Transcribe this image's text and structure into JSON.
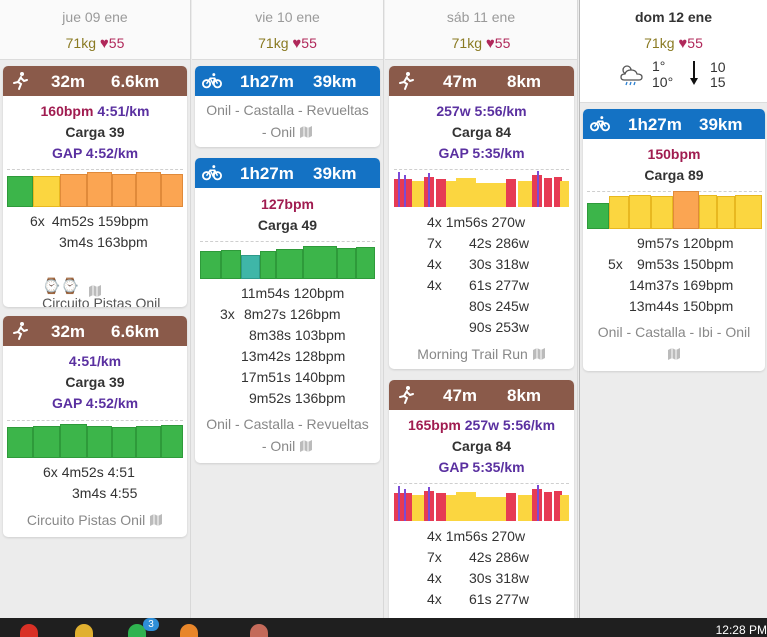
{
  "days": [
    {
      "date": "jue 09 ene",
      "weight": "71kg",
      "hr": "55"
    },
    {
      "date": "vie 10 ene",
      "weight": "71kg",
      "hr": "55"
    },
    {
      "date": "sáb 11 ene",
      "weight": "71kg",
      "hr": "55"
    },
    {
      "date": "dom 12 ene",
      "weight": "71kg",
      "hr": "55"
    }
  ],
  "weather": {
    "low": "1°",
    "high": "10°",
    "wind_a": "10",
    "wind_b": "15",
    "icon": "cloudy-rain-icon"
  },
  "colors": {
    "run": "#8a5a4a",
    "ride": "#1472c4",
    "green": "#3cb54a",
    "yellow": "#fbd640",
    "orange": "#fba552",
    "red": "#e63b54",
    "purple": "#7a4bd6"
  },
  "cards": {
    "thu1": {
      "dur": "32m",
      "dist": "6.6km",
      "bpm": "160bpm",
      "pace": "4:51/km",
      "carga": "Carga 39",
      "gap": "GAP 4:52/km",
      "rows": [
        [
          "6x",
          "4m52s",
          "159bpm"
        ],
        [
          "",
          "3m4s",
          "163bpm"
        ]
      ],
      "loc": "Circuito Pistas Onil"
    },
    "thu2": {
      "dur": "32m",
      "dist": "6.6km",
      "pace": "4:51/km",
      "carga": "Carga 39",
      "gap": "GAP 4:52/km",
      "rows": [
        [
          "6x",
          "4m52s",
          "4:51"
        ],
        [
          "",
          "3m4s",
          "4:55"
        ]
      ],
      "loc": "Circuito Pistas Onil"
    },
    "fri1": {
      "dur": "1h27m",
      "dist": "39km",
      "loc1": "Onil - Castalla - Revueltas",
      "loc2": "- Onil"
    },
    "fri2": {
      "dur": "1h27m",
      "dist": "39km",
      "bpm": "127bpm",
      "carga": "Carga 49",
      "rows": [
        [
          "",
          "11m54s",
          "120bpm"
        ],
        [
          "3x",
          "8m27s",
          "126bpm"
        ],
        [
          "",
          "8m38s",
          "103bpm"
        ],
        [
          "",
          "13m42s",
          "128bpm"
        ],
        [
          "",
          "17m51s",
          "140bpm"
        ],
        [
          "",
          "9m52s",
          "136bpm"
        ]
      ],
      "loc1": "Onil - Castalla - Revueltas",
      "loc2": "- Onil"
    },
    "sat1": {
      "dur": "47m",
      "dist": "8km",
      "watts": "257w",
      "pace": "5:56/km",
      "carga": "Carga 84",
      "gap": "GAP 5:35/km",
      "rows": [
        [
          "4x",
          "1m56s",
          "270w"
        ],
        [
          "7x",
          "42s",
          "286w"
        ],
        [
          "4x",
          "30s",
          "318w"
        ],
        [
          "4x",
          "61s",
          "277w"
        ],
        [
          "",
          "80s",
          "245w"
        ],
        [
          "",
          "90s",
          "253w"
        ]
      ],
      "loc": "Morning Trail Run"
    },
    "sat2": {
      "dur": "47m",
      "dist": "8km",
      "bpm": "165bpm",
      "watts": "257w",
      "pace": "5:56/km",
      "carga": "Carga 84",
      "gap": "GAP 5:35/km",
      "rows": [
        [
          "4x",
          "1m56s",
          "270w"
        ],
        [
          "7x",
          "42s",
          "286w"
        ],
        [
          "4x",
          "30s",
          "318w"
        ],
        [
          "4x",
          "61s",
          "277w"
        ]
      ]
    },
    "sun1": {
      "dur": "1h27m",
      "dist": "39km",
      "bpm": "150bpm",
      "carga": "Carga 89",
      "rows": [
        [
          "",
          "9m57s",
          "120bpm"
        ],
        [
          "5x",
          "9m53s",
          "150bpm"
        ],
        [
          "",
          "14m37s",
          "169bpm"
        ],
        [
          "",
          "13m44s",
          "150bpm"
        ]
      ],
      "loc": "Onil - Castalla - Ibi - Onil"
    }
  },
  "taskbar": {
    "badge": "3",
    "time": "12:28 PM"
  }
}
